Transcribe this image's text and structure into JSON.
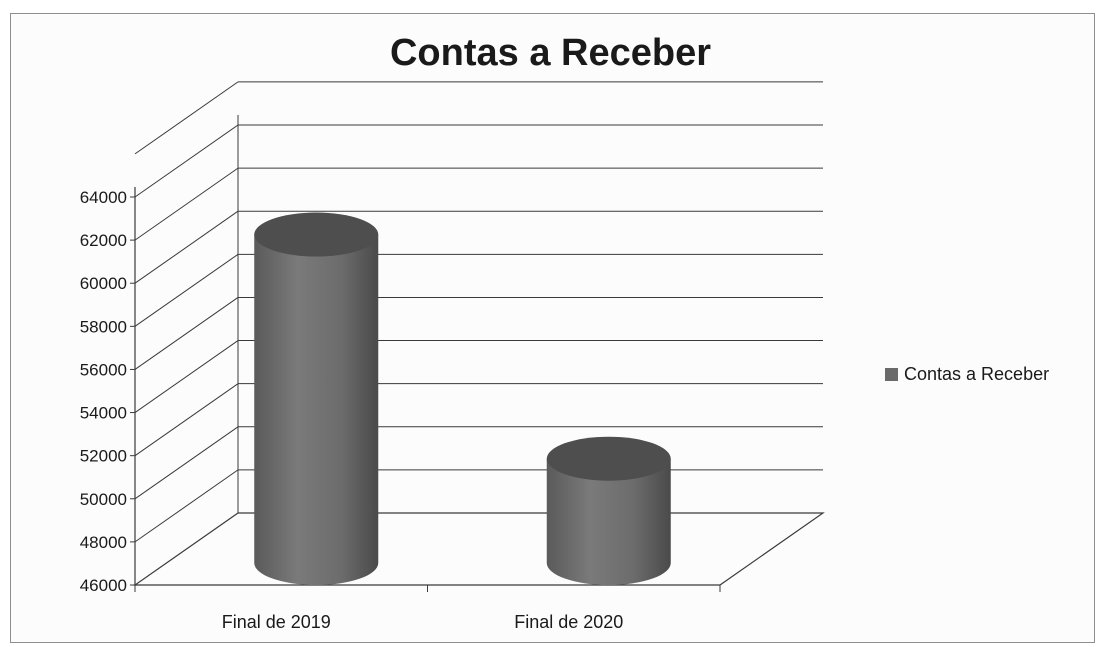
{
  "chart_data": {
    "type": "bar",
    "style": "3d-cylinder",
    "title": "Contas a Receber",
    "categories": [
      "Final de 2019",
      "Final de 2020"
    ],
    "series": [
      {
        "name": "Contas a Receber",
        "values": [
          63000,
          52600
        ]
      }
    ],
    "ylim": [
      46000,
      64000
    ],
    "yticks": [
      46000,
      48000,
      50000,
      52000,
      54000,
      56000,
      58000,
      60000,
      62000,
      64000
    ],
    "grid": true,
    "legend": "right",
    "colors": {
      "bar": "#6a6a6a",
      "bar_top": "#4e4e4e",
      "grid": "#3a3a3a"
    }
  }
}
